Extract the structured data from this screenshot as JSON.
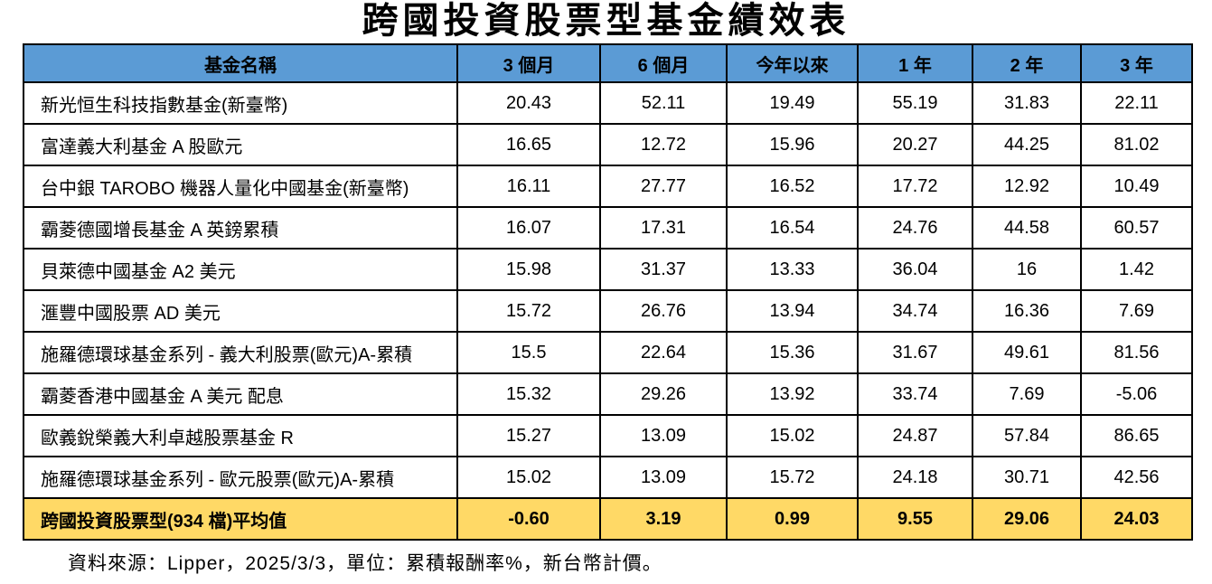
{
  "title": "跨國投資股票型基金績效表",
  "chart_data": {
    "type": "table",
    "title": "跨國投資股票型基金績效表",
    "columns": [
      "基金名稱",
      "3 個月",
      "6 個月",
      "今年以來",
      "1 年",
      "2 年",
      "3 年"
    ],
    "rows": [
      {
        "name": "新光恒生科技指數基金(新臺幣)",
        "values": [
          "20.43",
          "52.11",
          "19.49",
          "55.19",
          "31.83",
          "22.11"
        ]
      },
      {
        "name": "富達義大利基金 A 股歐元",
        "values": [
          "16.65",
          "12.72",
          "15.96",
          "20.27",
          "44.25",
          "81.02"
        ]
      },
      {
        "name": "台中銀 TAROBO 機器人量化中國基金(新臺幣)",
        "values": [
          "16.11",
          "27.77",
          "16.52",
          "17.72",
          "12.92",
          "10.49"
        ]
      },
      {
        "name": "霸菱德國增長基金 A 英鎊累積",
        "values": [
          "16.07",
          "17.31",
          "16.54",
          "24.76",
          "44.58",
          "60.57"
        ]
      },
      {
        "name": "貝萊德中國基金 A2 美元",
        "values": [
          "15.98",
          "31.37",
          "13.33",
          "36.04",
          "16",
          "1.42"
        ]
      },
      {
        "name": "滙豐中國股票 AD 美元",
        "values": [
          "15.72",
          "26.76",
          "13.94",
          "34.74",
          "16.36",
          "7.69"
        ]
      },
      {
        "name": "施羅德環球基金系列 - 義大利股票(歐元)A-累積",
        "values": [
          "15.5",
          "22.64",
          "15.36",
          "31.67",
          "49.61",
          "81.56"
        ]
      },
      {
        "name": "霸菱香港中國基金 A 美元 配息",
        "values": [
          "15.32",
          "29.26",
          "13.92",
          "33.74",
          "7.69",
          "-5.06"
        ]
      },
      {
        "name": "歐義銳榮義大利卓越股票基金 R",
        "values": [
          "15.27",
          "13.09",
          "15.02",
          "24.87",
          "57.84",
          "86.65"
        ]
      },
      {
        "name": "施羅德環球基金系列 - 歐元股票(歐元)A-累積",
        "values": [
          "15.02",
          "13.09",
          "15.72",
          "24.18",
          "30.71",
          "42.56"
        ]
      }
    ],
    "average_row": {
      "name": "跨國投資股票型(934 檔)平均值",
      "values": [
        "-0.60",
        "3.19",
        "0.99",
        "9.55",
        "29.06",
        "24.03"
      ]
    },
    "source_note": "資料來源：Lipper，2025/3/3，單位：累積報酬率%，新台幣計價。",
    "unit": "累積報酬率%",
    "currency_basis": "新台幣計價",
    "data_date": "2025/3/3",
    "data_source": "Lipper"
  },
  "colors": {
    "header_bg": "#5B9BD5",
    "average_bg": "#FFD966",
    "border": "#000000",
    "text": "#000000",
    "background": "#FFFFFF"
  }
}
